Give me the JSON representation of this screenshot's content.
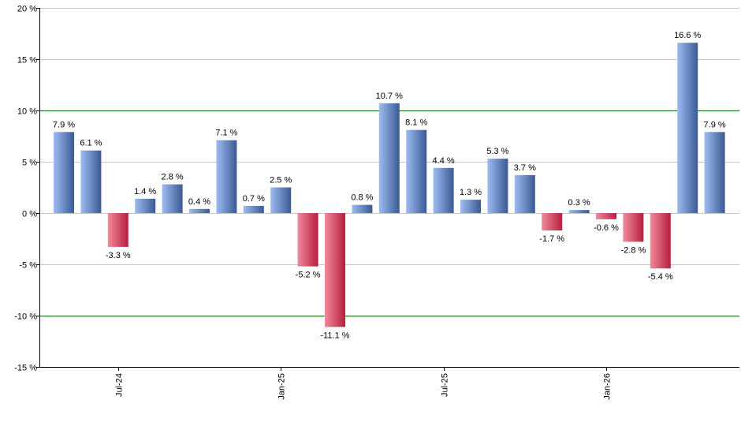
{
  "chart_data": {
    "type": "bar",
    "title": "",
    "xlabel": "",
    "ylabel": "",
    "ylim": [
      -15,
      20
    ],
    "y_ticks": [
      20,
      15,
      10,
      5,
      0,
      -5,
      -10,
      -15
    ],
    "y_tick_labels": [
      "20 %",
      "15 %",
      "10 %",
      "5 %",
      "0 %",
      "-5 %",
      "-10 %",
      "-15 %"
    ],
    "highlight_gridlines": [
      10,
      -10
    ],
    "x_tick_labels": [
      {
        "label": "Jul-24",
        "index": 2
      },
      {
        "label": "Jan-25",
        "index": 8
      },
      {
        "label": "Jul-25",
        "index": 14
      },
      {
        "label": "Jan-26",
        "index": 20
      }
    ],
    "values": [
      7.9,
      6.1,
      -3.3,
      1.4,
      2.8,
      0.4,
      7.1,
      0.7,
      2.5,
      -5.2,
      -11.1,
      0.8,
      10.7,
      8.1,
      4.4,
      1.3,
      5.3,
      3.7,
      -1.7,
      0.3,
      -0.6,
      -2.8,
      -5.4,
      16.6,
      7.9
    ],
    "value_labels": [
      "7.9 %",
      "6.1 %",
      "-3.3 %",
      "1.4 %",
      "2.8 %",
      "0.4 %",
      "7.1 %",
      "0.7 %",
      "2.5 %",
      "-5.2 %",
      "-11.1 %",
      "0.8 %",
      "10.7 %",
      "8.1 %",
      "4.4 %",
      "1.3 %",
      "5.3 %",
      "3.7 %",
      "-1.7 %",
      "0.3 %",
      "-0.6 %",
      "-2.8 %",
      "-5.4 %",
      "16.6 %",
      "7.9 %"
    ],
    "colors": {
      "positive_light": "#9dbcf2",
      "positive_dark": "#3a5a92",
      "negative_light": "#f08a9c",
      "negative_dark": "#b51f3e",
      "grid": "#c8c8c8",
      "highlight_grid": "#006400",
      "axis": "#000000"
    }
  }
}
